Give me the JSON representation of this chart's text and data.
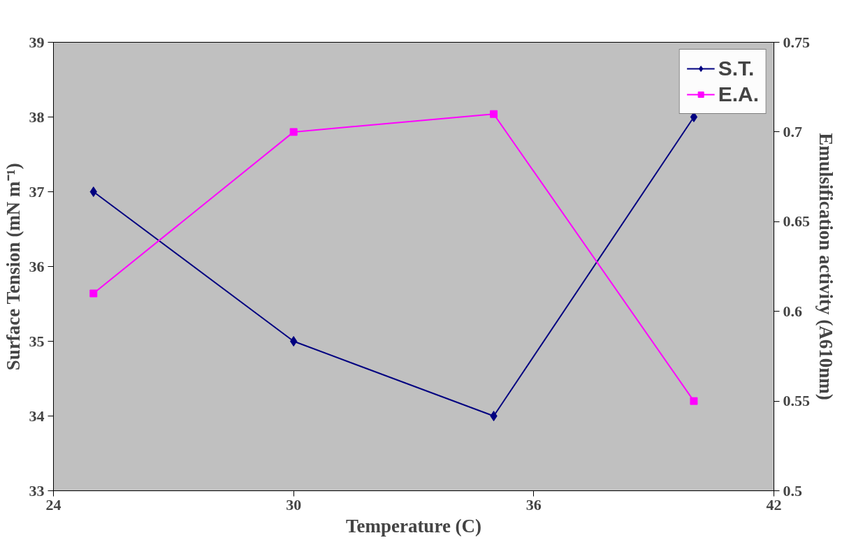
{
  "chart_data": {
    "type": "line",
    "xlabel": "Temperature (C)",
    "ylabel": "Surface Tension (mN m⁻¹)",
    "y2label": "Emulsification activity (A610nm)",
    "x": [
      25,
      30,
      35,
      40
    ],
    "series": [
      {
        "name": "S.T.",
        "color": "#000080",
        "marker": "diamond",
        "values": [
          37,
          35,
          34,
          38
        ]
      },
      {
        "name": "E.A.",
        "color": "#ff00ff",
        "marker": "square",
        "axis": "y2",
        "values": [
          0.61,
          0.7,
          0.71,
          0.55
        ]
      }
    ],
    "xlim": [
      24,
      42
    ],
    "xticks": [
      24,
      30,
      36,
      42
    ],
    "ylim": [
      33,
      39
    ],
    "yticks": [
      33,
      34,
      35,
      36,
      37,
      38,
      39
    ],
    "y2lim": [
      0.5,
      0.75
    ],
    "y2ticks": [
      0.5,
      0.55,
      0.6,
      0.65,
      0.7,
      0.75
    ],
    "grid": false,
    "legend": "top right",
    "line_style": "solid"
  }
}
